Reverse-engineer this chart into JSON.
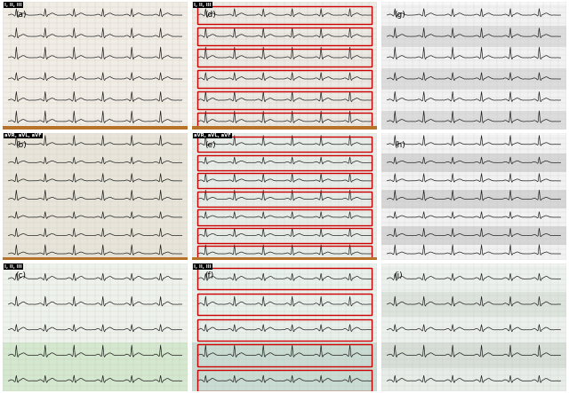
{
  "figure_size": [
    6.4,
    4.43
  ],
  "dpi": 100,
  "panels": [
    {
      "label": "(a)",
      "ecg_label": "I, II, III",
      "bg": "#f0ede6",
      "num_leads": 6,
      "has_red_boxes": false,
      "has_orange_border": false,
      "orange_edge": true,
      "bg2": null,
      "seed": 10,
      "variants": [
        0,
        1,
        2,
        0,
        1,
        2
      ]
    },
    {
      "label": "(d)",
      "ecg_label": "I, II, III",
      "bg": "#eceae4",
      "num_leads": 6,
      "has_red_boxes": true,
      "has_orange_border": false,
      "orange_edge": true,
      "bg2": null,
      "seed": 10,
      "variants": [
        0,
        1,
        2,
        0,
        1,
        2
      ]
    },
    {
      "label": "(g)",
      "ecg_label": null,
      "bg": "#f8f8f8",
      "num_leads": 6,
      "has_red_boxes": false,
      "has_orange_border": false,
      "orange_edge": false,
      "bg2": null,
      "seed": 10,
      "variants": [
        0,
        1,
        2,
        0,
        1,
        2
      ],
      "strip_style": true,
      "strip_bg_light": "#f0f0f0",
      "strip_bg_dark": "#d8d8d8"
    },
    {
      "label": "(b)",
      "ecg_label": "aVR, aVL, aVF",
      "bg": "#e8e4da",
      "num_leads": 7,
      "has_red_boxes": false,
      "has_orange_border": false,
      "orange_edge": true,
      "bg2": null,
      "seed": 20,
      "variants": [
        2,
        0,
        1,
        2,
        0,
        1,
        2
      ]
    },
    {
      "label": "(e)",
      "ecg_label": "aVR, aVL, aVF",
      "bg": "#e8ece8",
      "num_leads": 7,
      "has_red_boxes": true,
      "has_orange_border": false,
      "orange_edge": true,
      "bg2": null,
      "seed": 20,
      "variants": [
        2,
        0,
        1,
        2,
        0,
        1,
        2
      ]
    },
    {
      "label": "(h)",
      "ecg_label": null,
      "bg": "#f8f8f8",
      "num_leads": 7,
      "has_red_boxes": false,
      "has_orange_border": false,
      "orange_edge": false,
      "bg2": null,
      "seed": 20,
      "variants": [
        2,
        0,
        1,
        2,
        0,
        1,
        2
      ],
      "strip_style": true,
      "strip_bg_light": "#f0f0f0",
      "strip_bg_dark": "#d0d0d0"
    },
    {
      "label": "(c)",
      "ecg_label": "I, II, III",
      "bg": "#edf2ec",
      "num_leads": 5,
      "has_red_boxes": false,
      "has_orange_border": false,
      "orange_edge": false,
      "bg2": "#d4e8d0",
      "seed": 30,
      "variants": [
        -1,
        0,
        -1,
        1,
        -1
      ]
    },
    {
      "label": "(f)",
      "ecg_label": "I, II, III",
      "bg": "#e8f0ec",
      "num_leads": 5,
      "has_red_boxes": true,
      "has_orange_border": false,
      "orange_edge": false,
      "bg2": "#c8dcd4",
      "seed": 30,
      "variants": [
        -1,
        0,
        -1,
        1,
        -1
      ]
    },
    {
      "label": "(i)",
      "ecg_label": null,
      "bg": "#f0f4f0",
      "num_leads": 5,
      "has_red_boxes": false,
      "has_orange_border": false,
      "orange_edge": false,
      "bg2": "#ccd8cc",
      "seed": 30,
      "variants": [
        -1,
        0,
        -1,
        1,
        -1
      ],
      "strip_style": true,
      "strip_bg_light": "#ecf0ec",
      "strip_bg_dark": "#d8e0d8"
    }
  ],
  "grid_color_warm": "#c8b8a0",
  "grid_color_cool": "#b8c8b8",
  "grid_color_neutral": "#c0c0c0",
  "ecg_color": "#1a1a1a",
  "red_box_color": "#cc0000"
}
